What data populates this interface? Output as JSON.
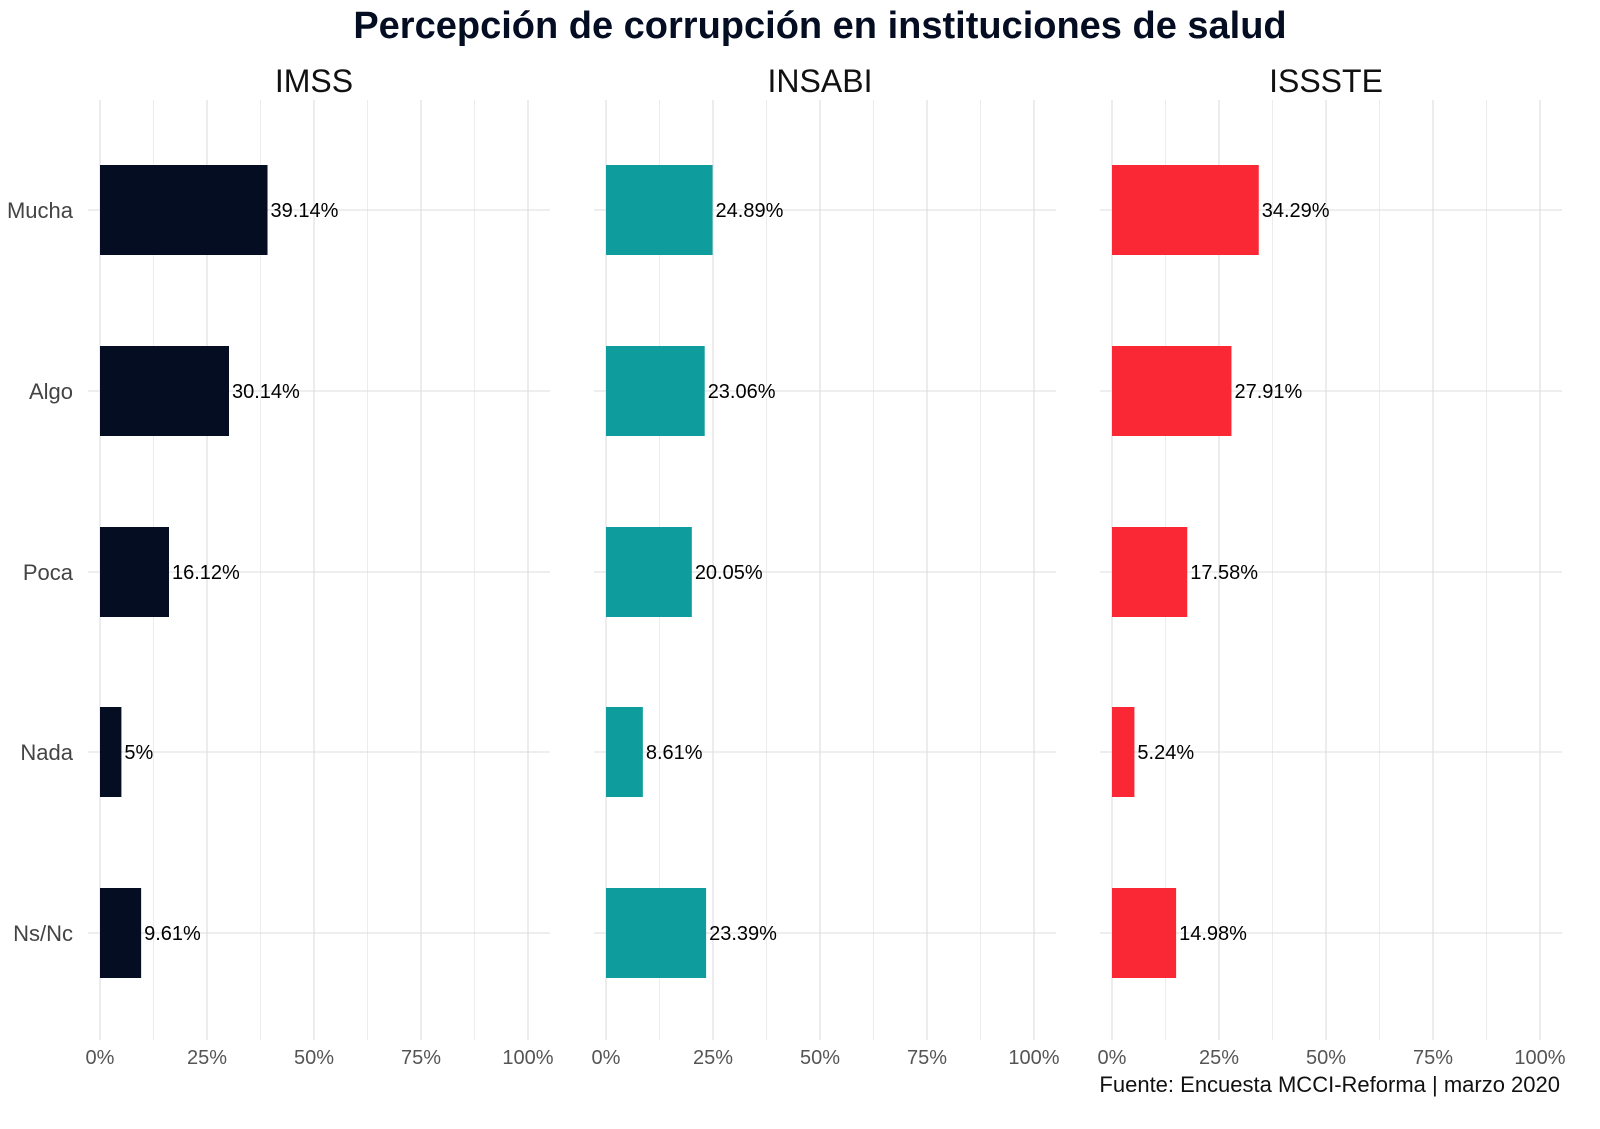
{
  "chart_data": {
    "type": "bar",
    "orientation": "horizontal",
    "title": "Percepción de corrupción en instituciones de salud",
    "caption": "Fuente: Encuesta MCCI-Reforma | marzo 2020",
    "categories": [
      "Mucha",
      "Algo",
      "Poca",
      "Nada",
      "Ns/Nc"
    ],
    "xlim": [
      0,
      100
    ],
    "x_ticks": [
      "0%",
      "25%",
      "50%",
      "75%",
      "100%"
    ],
    "grid": true,
    "panels": [
      {
        "name": "IMSS",
        "color": "#050d22",
        "values": [
          39.14,
          30.14,
          16.12,
          5,
          9.61
        ],
        "labels": [
          "39.14%",
          "30.14%",
          "16.12%",
          "5%",
          "9.61%"
        ]
      },
      {
        "name": "INSABI",
        "color": "#0e9c9c",
        "values": [
          24.89,
          23.06,
          20.05,
          8.61,
          23.39
        ],
        "labels": [
          "24.89%",
          "23.06%",
          "20.05%",
          "8.61%",
          "23.39%"
        ]
      },
      {
        "name": "ISSSTE",
        "color": "#f92834",
        "values": [
          34.29,
          27.91,
          17.58,
          5.24,
          14.98
        ],
        "labels": [
          "34.29%",
          "27.91%",
          "17.58%",
          "5.24%",
          "14.98%"
        ]
      }
    ]
  }
}
